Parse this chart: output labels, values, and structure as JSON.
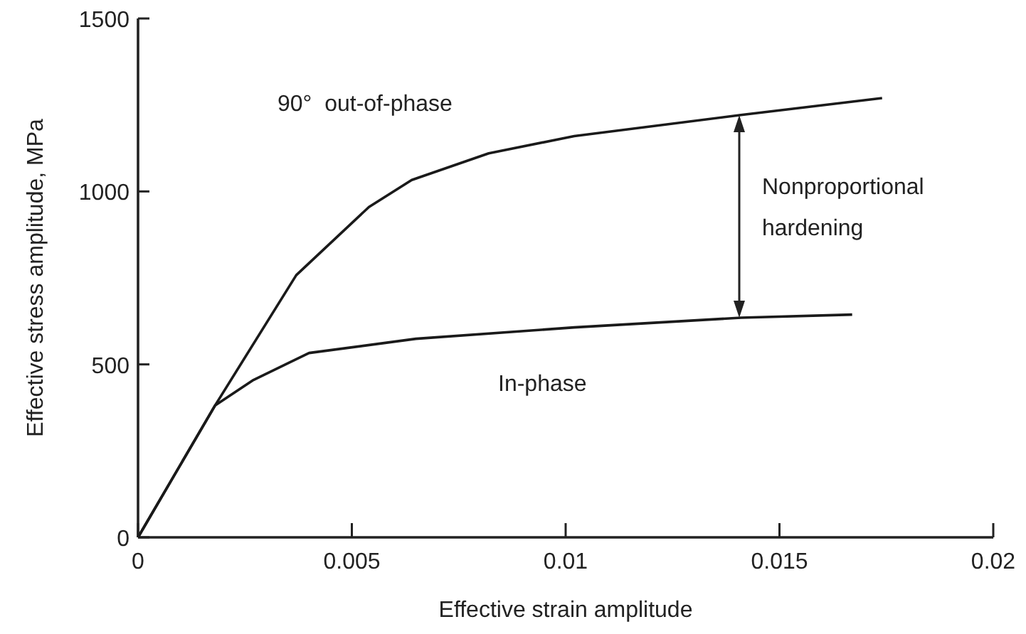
{
  "chart_data": {
    "type": "line",
    "xlabel": "Effective strain amplitude",
    "ylabel": "Effective stress amplitude, MPa",
    "xlim": [
      0,
      0.02
    ],
    "xticks": [
      0,
      0.005,
      0.01,
      0.015,
      0.02
    ],
    "ylim": [
      0,
      1500
    ],
    "yticks": [
      0,
      500,
      1000,
      1500
    ],
    "grid": false,
    "legend": false,
    "marker": "none",
    "line_style": "solid",
    "series": [
      {
        "name": "90°  out-of-phase",
        "color": "#1a1a1a",
        "x": [
          0,
          0.0018,
          0.0037,
          0.0054,
          0.0064,
          0.0082,
          0.0102,
          0.0141,
          0.0174
        ],
        "values": [
          0,
          381,
          758,
          955,
          1033,
          1110,
          1160,
          1221,
          1270
        ]
      },
      {
        "name": "In-phase",
        "color": "#1a1a1a",
        "x": [
          0,
          0.0018,
          0.0027,
          0.004,
          0.0065,
          0.0102,
          0.0141,
          0.0167
        ],
        "values": [
          0,
          381,
          455,
          533,
          574,
          607,
          635,
          644
        ]
      }
    ],
    "annotations": [
      "Nonproportional hardening"
    ]
  }
}
